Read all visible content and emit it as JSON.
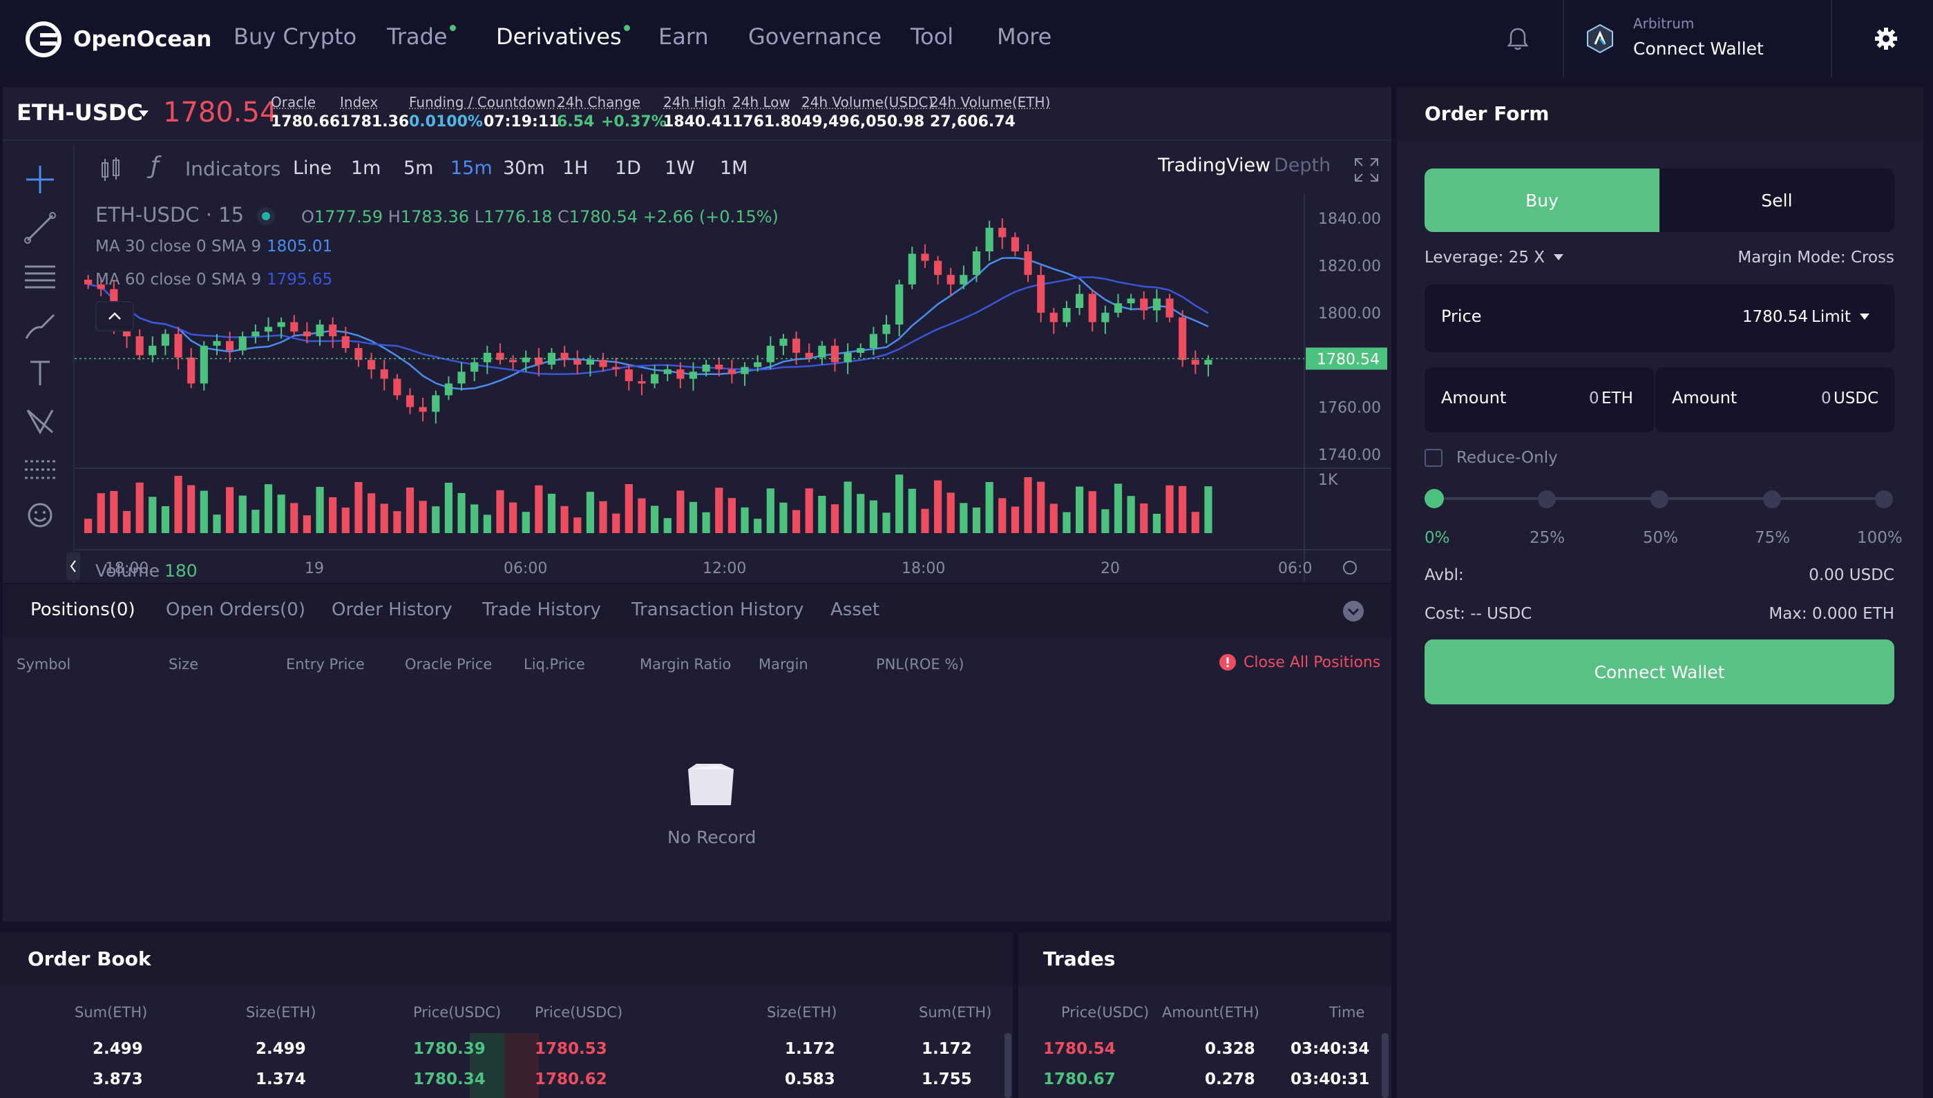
{
  "nav": {
    "brand": "OpenOcean",
    "items": [
      {
        "label": "Buy Crypto"
      },
      {
        "label": "Trade"
      },
      {
        "label": "Derivatives"
      },
      {
        "label": "Earn"
      },
      {
        "label": "Governance"
      },
      {
        "label": "Tool"
      },
      {
        "label": "More"
      }
    ],
    "network": "Arbitrum",
    "connect_wallet": "Connect Wallet"
  },
  "ticker": {
    "pair": "ETH-USDC",
    "last_price": "1780.54",
    "oracle_label": "Oracle",
    "oracle": "1780.66",
    "index_label": "Index",
    "index": "1781.36",
    "funding_label": "Funding / Countdown",
    "funding": "0.0100%",
    "countdown": "07:19:11",
    "change_label": "24h Change",
    "change": "6.54",
    "change_pct": "+0.37%",
    "high_label": "24h High",
    "high": "1840.41",
    "low_label": "24h Low",
    "low": "1761.80",
    "vol_usdc_label": "24h Volume(USDC)",
    "vol_usdc": "49,496,050.98",
    "vol_eth_label": "24h Volume(ETH)",
    "vol_eth": "27,606.74"
  },
  "chart_toolbar": {
    "indicators": "Indicators",
    "intervals": [
      "Line",
      "1m",
      "5m",
      "15m",
      "30m",
      "1H",
      "1D",
      "1W",
      "1M"
    ],
    "active_interval": "15m",
    "tradingview": "TradingView",
    "depth": "Depth"
  },
  "chart_legend": {
    "symbol": "ETH-USDC · 15",
    "o_label": "O",
    "o": "1777.59",
    "h_label": "H",
    "h": "1783.36",
    "l_label": "L",
    "l": "1776.18",
    "c_label": "C",
    "c": "1780.54",
    "change": "+2.66 (+0.15%)",
    "ma30_label": "MA 30 close 0 SMA 9",
    "ma30": "1805.01",
    "ma60_label": "MA 60 close 0 SMA 9",
    "ma60": "1795.65",
    "volume_label": "Volume",
    "volume": "180"
  },
  "chart_data": {
    "type": "candlestick",
    "ylim": [
      1730,
      1850
    ],
    "y_ticks": [
      "1840.00",
      "1820.00",
      "1800.00",
      "1780.00",
      "1760.00",
      "1740.00"
    ],
    "current_price_tag": "1780.54",
    "volume_axis_label": "1K",
    "x_ticks": [
      "18:00",
      "19",
      "06:00",
      "12:00",
      "18:00",
      "20",
      "06:0"
    ],
    "close_series": [
      1812,
      1810,
      1795,
      1790,
      1782,
      1786,
      1791,
      1781,
      1770,
      1786,
      1788,
      1784,
      1790,
      1792,
      1794,
      1796,
      1792,
      1790,
      1795,
      1790,
      1785,
      1780,
      1776,
      1772,
      1765,
      1760,
      1758,
      1765,
      1770,
      1775,
      1779,
      1783,
      1780,
      1779,
      1781,
      1778,
      1783,
      1780,
      1778,
      1780,
      1777,
      1776,
      1771,
      1770,
      1774,
      1776,
      1772,
      1775,
      1778,
      1776,
      1774,
      1777,
      1779,
      1786,
      1789,
      1783,
      1781,
      1786,
      1779,
      1783,
      1785,
      1791,
      1795,
      1812,
      1825,
      1822,
      1816,
      1812,
      1816,
      1826,
      1836,
      1832,
      1826,
      1816,
      1800,
      1796,
      1802,
      1808,
      1796,
      1800,
      1804,
      1806,
      1801,
      1806,
      1798,
      1780,
      1778,
      1780
    ]
  },
  "bottom_tabs": {
    "tabs": [
      "Positions(0)",
      "Open Orders(0)",
      "Order History",
      "Trade History",
      "Transaction History",
      "Asset"
    ],
    "columns": [
      "Symbol",
      "Size",
      "Entry Price",
      "Oracle Price",
      "Liq.Price",
      "Margin Ratio",
      "Margin",
      "PNL(ROE %)"
    ],
    "close_all": "Close All Positions",
    "empty": "No Record"
  },
  "order_form": {
    "title": "Order Form",
    "buy": "Buy",
    "sell": "Sell",
    "leverage": "Leverage: 25 X",
    "margin_mode": "Margin Mode: Cross",
    "price_label": "Price",
    "price_value": "1780.54",
    "order_type": "Limit",
    "amount_label": "Amount",
    "amount_eth_value": "0",
    "amount_eth_unit": "ETH",
    "amount_usdc_value": "0",
    "amount_usdc_unit": "USDC",
    "reduce_only": "Reduce-Only",
    "slider_marks": [
      "0%",
      "25%",
      "50%",
      "75%",
      "100%"
    ],
    "slider_value": 0,
    "avbl_label": "Avbl:",
    "avbl_value": "0.00 USDC",
    "cost": "Cost: -- USDC",
    "max": "Max: 0.000 ETH",
    "connect_wallet": "Connect Wallet"
  },
  "order_book": {
    "title": "Order Book",
    "headers": [
      "Sum(ETH)",
      "Size(ETH)",
      "Price(USDC)",
      "Price(USDC)",
      "Size(ETH)",
      "Sum(ETH)"
    ],
    "rows": [
      {
        "bid_sum": "2.499",
        "bid_size": "2.499",
        "bid_price": "1780.39",
        "ask_price": "1780.53",
        "ask_size": "1.172",
        "ask_sum": "1.172"
      },
      {
        "bid_sum": "3.873",
        "bid_size": "1.374",
        "bid_price": "1780.34",
        "ask_price": "1780.62",
        "ask_size": "0.583",
        "ask_sum": "1.755"
      }
    ]
  },
  "trades": {
    "title": "Trades",
    "headers": [
      "Price(USDC)",
      "Amount(ETH)",
      "Time"
    ],
    "rows": [
      {
        "price": "1780.54",
        "amount": "0.328",
        "time": "03:40:34",
        "side": "sell"
      },
      {
        "price": "1780.67",
        "amount": "0.278",
        "time": "03:40:31",
        "side": "buy"
      }
    ]
  },
  "colors": {
    "green": "#4cc27e",
    "red": "#ee4d5f",
    "ma30": "#4a8df0",
    "ma60": "#3a55d8",
    "bg": "#13122a",
    "panel": "#1e1d33"
  }
}
